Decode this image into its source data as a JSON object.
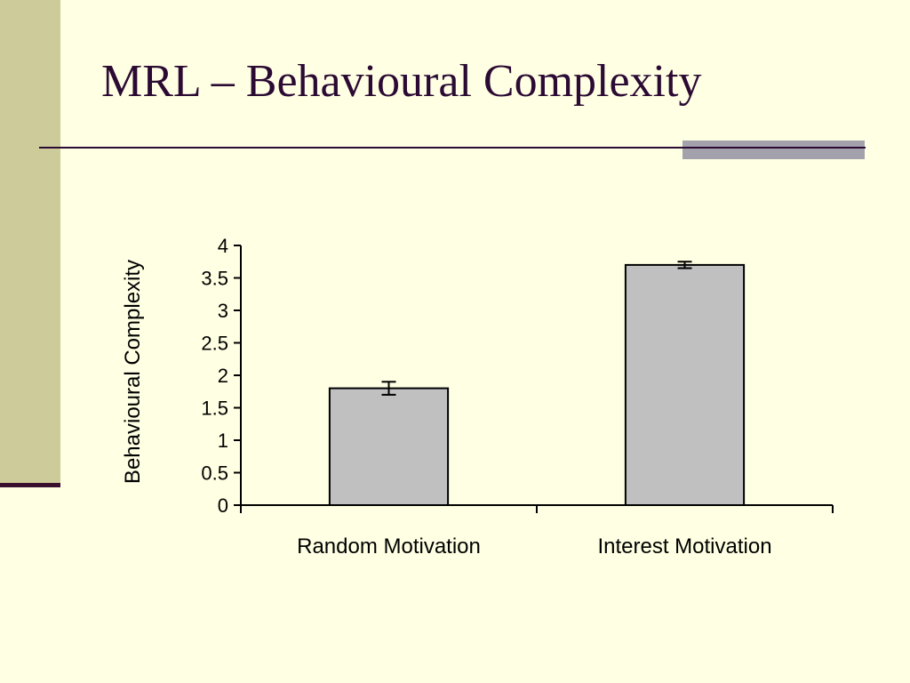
{
  "slide": {
    "title": "MRL – Behavioural Complexity"
  },
  "colors": {
    "background": "#FFFFE3",
    "left_band": "#CDCB9A",
    "title_text": "#2B0A33",
    "accent_bar": "#A3A1AC",
    "bar_fill": "#C0C0C0"
  },
  "chart_data": {
    "type": "bar",
    "title": "",
    "xlabel": "",
    "ylabel": "Behavioural Complexity",
    "categories": [
      "Random Motivation",
      "Interest Motivation"
    ],
    "values": [
      1.8,
      3.7
    ],
    "errors": [
      0.1,
      0.05
    ],
    "ylim": [
      0,
      4
    ],
    "yticks": [
      "0",
      "0.5",
      "1",
      "1.5",
      "2",
      "2.5",
      "3",
      "3.5",
      "4"
    ],
    "grid": false,
    "legend": "none"
  }
}
